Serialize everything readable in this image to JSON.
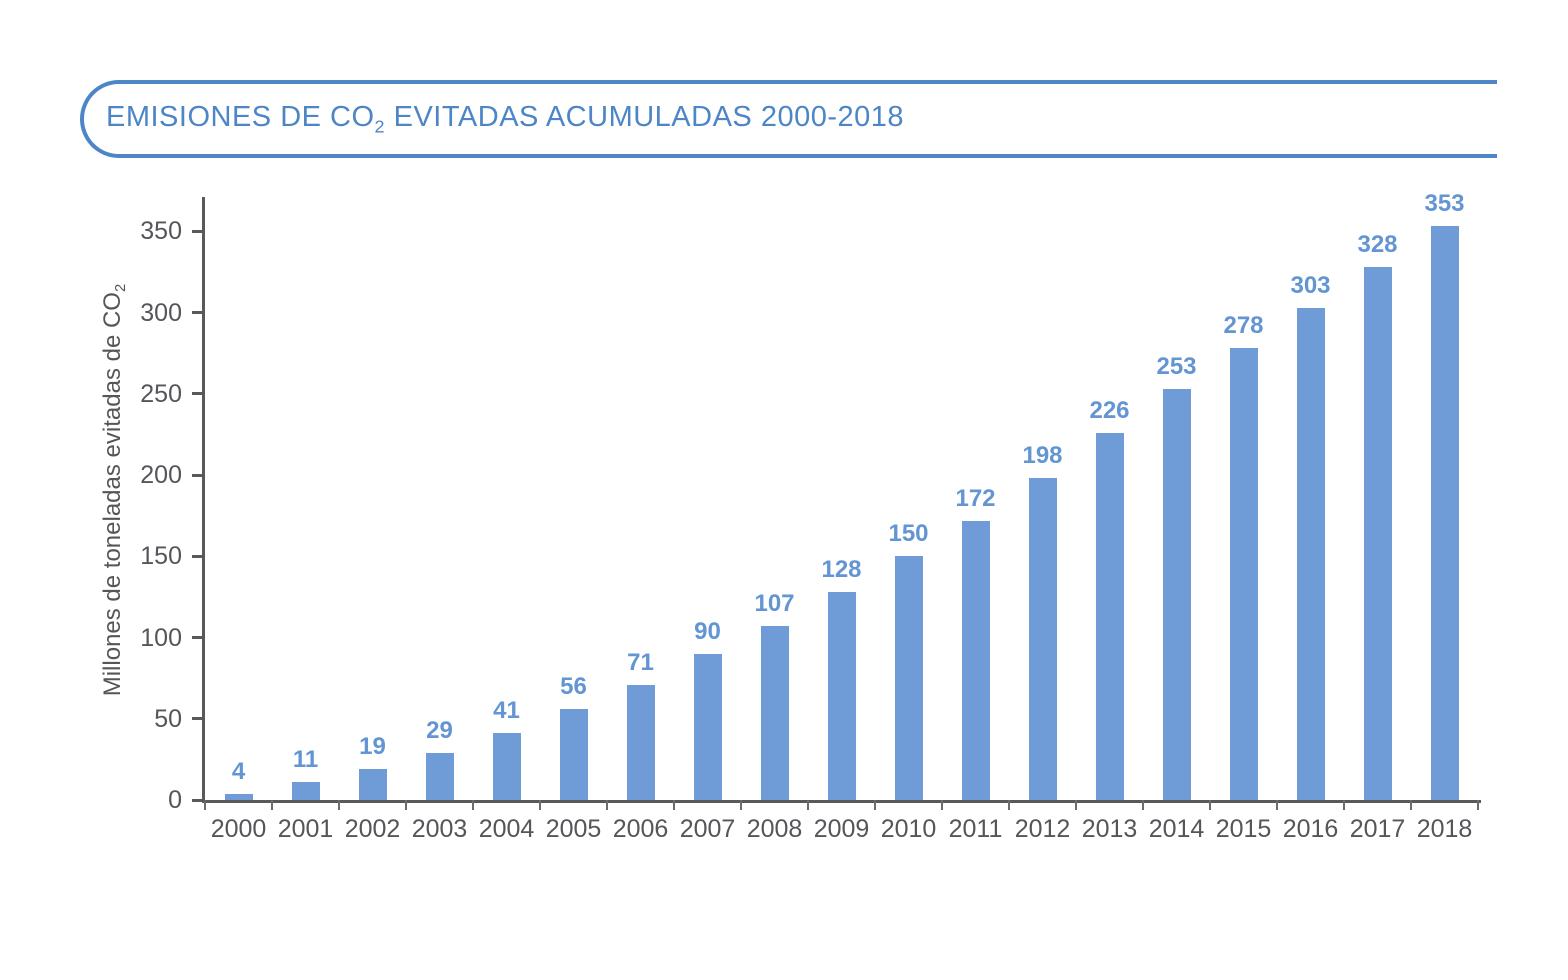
{
  "title": {
    "pre": "EMISIONES DE CO",
    "sub": "2",
    "post": " EVITADAS ACUMULADAS 2000-2018"
  },
  "y_axis": {
    "label_pre": "Millones de toneladas evitadas de CO",
    "label_sub": "2"
  },
  "chart_data": {
    "type": "bar",
    "title": "EMISIONES DE CO2 EVITADAS ACUMULADAS 2000-2018",
    "categories": [
      "2000",
      "2001",
      "2002",
      "2003",
      "2004",
      "2005",
      "2006",
      "2007",
      "2008",
      "2009",
      "2010",
      "2011",
      "2012",
      "2013",
      "2014",
      "2015",
      "2016",
      "2017",
      "2018"
    ],
    "values": [
      4,
      11,
      19,
      29,
      41,
      56,
      71,
      90,
      107,
      128,
      150,
      172,
      198,
      226,
      253,
      278,
      303,
      328,
      353
    ],
    "value_labels": [
      "4",
      "11",
      "19",
      "29",
      "41",
      "56",
      "71",
      "90",
      "107",
      "128",
      "150",
      "172",
      "198",
      "226",
      "253",
      "278",
      "303",
      "328",
      "353"
    ],
    "xlabel": "",
    "ylabel": "Millones de toneladas evitadas de CO2",
    "yticks": [
      0,
      50,
      100,
      150,
      200,
      250,
      300,
      350
    ],
    "ylim": [
      0,
      372
    ],
    "grid": false,
    "legend": null
  },
  "colors": {
    "title_blue": "#4d86c6",
    "bar_blue": "#6f9bd6",
    "value_label_blue": "#6295d2",
    "axis_gray": "#58595b",
    "tick_text_gray": "#55565a",
    "background": "#ffffff"
  }
}
